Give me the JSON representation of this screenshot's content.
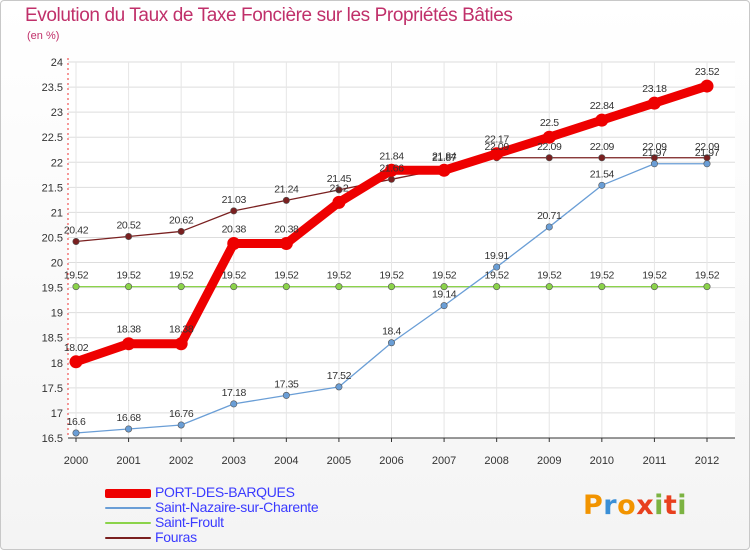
{
  "title": "Evolution du Taux de Taxe Foncière sur les Propriétés Bâties",
  "unit": "(en %)",
  "logo": {
    "letters": [
      "P",
      "r",
      "o",
      "x",
      "i",
      "t",
      "i"
    ],
    "colors": [
      "#f29400",
      "#3b8fd6",
      "#f29400",
      "#e8401e",
      "#7cb342",
      "#e8401e",
      "#7cb342"
    ]
  },
  "chart_data": {
    "type": "line",
    "x": [
      2000,
      2001,
      2002,
      2003,
      2004,
      2005,
      2006,
      2007,
      2008,
      2009,
      2010,
      2011,
      2012
    ],
    "x_labels": [
      "2000",
      "2001",
      "2002",
      "2003",
      "2004",
      "2005",
      "2006",
      "2007",
      "2008",
      "2009",
      "2010",
      "2011",
      "2012"
    ],
    "ylim": [
      16.5,
      24
    ],
    "y_ticks": [
      16.5,
      17,
      17.5,
      18,
      18.5,
      19,
      19.5,
      20,
      20.5,
      21,
      21.5,
      22,
      22.5,
      23,
      23.5,
      24
    ],
    "y_tick_labels": [
      "16.5",
      "17",
      "17.5",
      "18",
      "18.5",
      "19",
      "19.5",
      "20",
      "20.5",
      "21",
      "21.5",
      "22",
      "22.5",
      "23",
      "23.5",
      "24"
    ],
    "series": [
      {
        "name": "Fouras",
        "color": "#7a2020",
        "values": [
          20.42,
          20.52,
          20.62,
          21.03,
          21.24,
          21.45,
          21.66,
          21.87,
          22.09,
          22.09,
          22.09,
          22.09,
          22.09
        ],
        "labels": [
          "20.42",
          "20.52",
          "20.62",
          "21.03",
          "21.24",
          "21.45",
          "21.66",
          "21.87",
          "22.09",
          "22.09",
          "22.09",
          "22.09",
          "22.09"
        ]
      },
      {
        "name": "Saint-Froult",
        "color": "#8bd34a",
        "values": [
          19.52,
          19.52,
          19.52,
          19.52,
          19.52,
          19.52,
          19.52,
          19.52,
          19.52,
          19.52,
          19.52,
          19.52,
          19.52
        ],
        "labels": [
          "19.52",
          "19.52",
          "19.52",
          "19.52",
          "19.52",
          "19.52",
          "19.52",
          "19.52",
          "19.52",
          "19.52",
          "19.52",
          "19.52",
          "19.52"
        ]
      },
      {
        "name": "Saint-Nazaire-sur-Charente",
        "color": "#6a9ed6",
        "values": [
          16.6,
          16.68,
          16.76,
          17.18,
          17.35,
          17.52,
          18.4,
          19.14,
          19.91,
          20.71,
          21.54,
          21.97,
          21.97
        ],
        "labels": [
          "16.6",
          "16.68",
          "16.76",
          "17.18",
          "17.35",
          "17.52",
          "18.4",
          "19.14",
          "19.91",
          "20.71",
          "21.54",
          "21.97",
          "21.97"
        ]
      },
      {
        "name": "PORT-DES-BARQUES",
        "color": "#ee0000",
        "values": [
          18.02,
          18.38,
          18.38,
          20.38,
          20.38,
          21.2,
          21.84,
          21.84,
          22.17,
          22.5,
          22.84,
          23.18,
          23.52
        ],
        "labels": [
          "18.02",
          "18.38",
          "18.38",
          "20.38",
          "20.38",
          "21.2",
          "21.84",
          "21.84",
          "22.17",
          "22.5",
          "22.84",
          "23.18",
          "23.52"
        ]
      }
    ],
    "legend": [
      {
        "label": "PORT-DES-BARQUES",
        "color": "#ee0000"
      },
      {
        "label": "Saint-Nazaire-sur-Charente",
        "color": "#6a9ed6"
      },
      {
        "label": "Saint-Froult",
        "color": "#8bd34a"
      },
      {
        "label": "Fouras",
        "color": "#7a2020"
      }
    ]
  }
}
